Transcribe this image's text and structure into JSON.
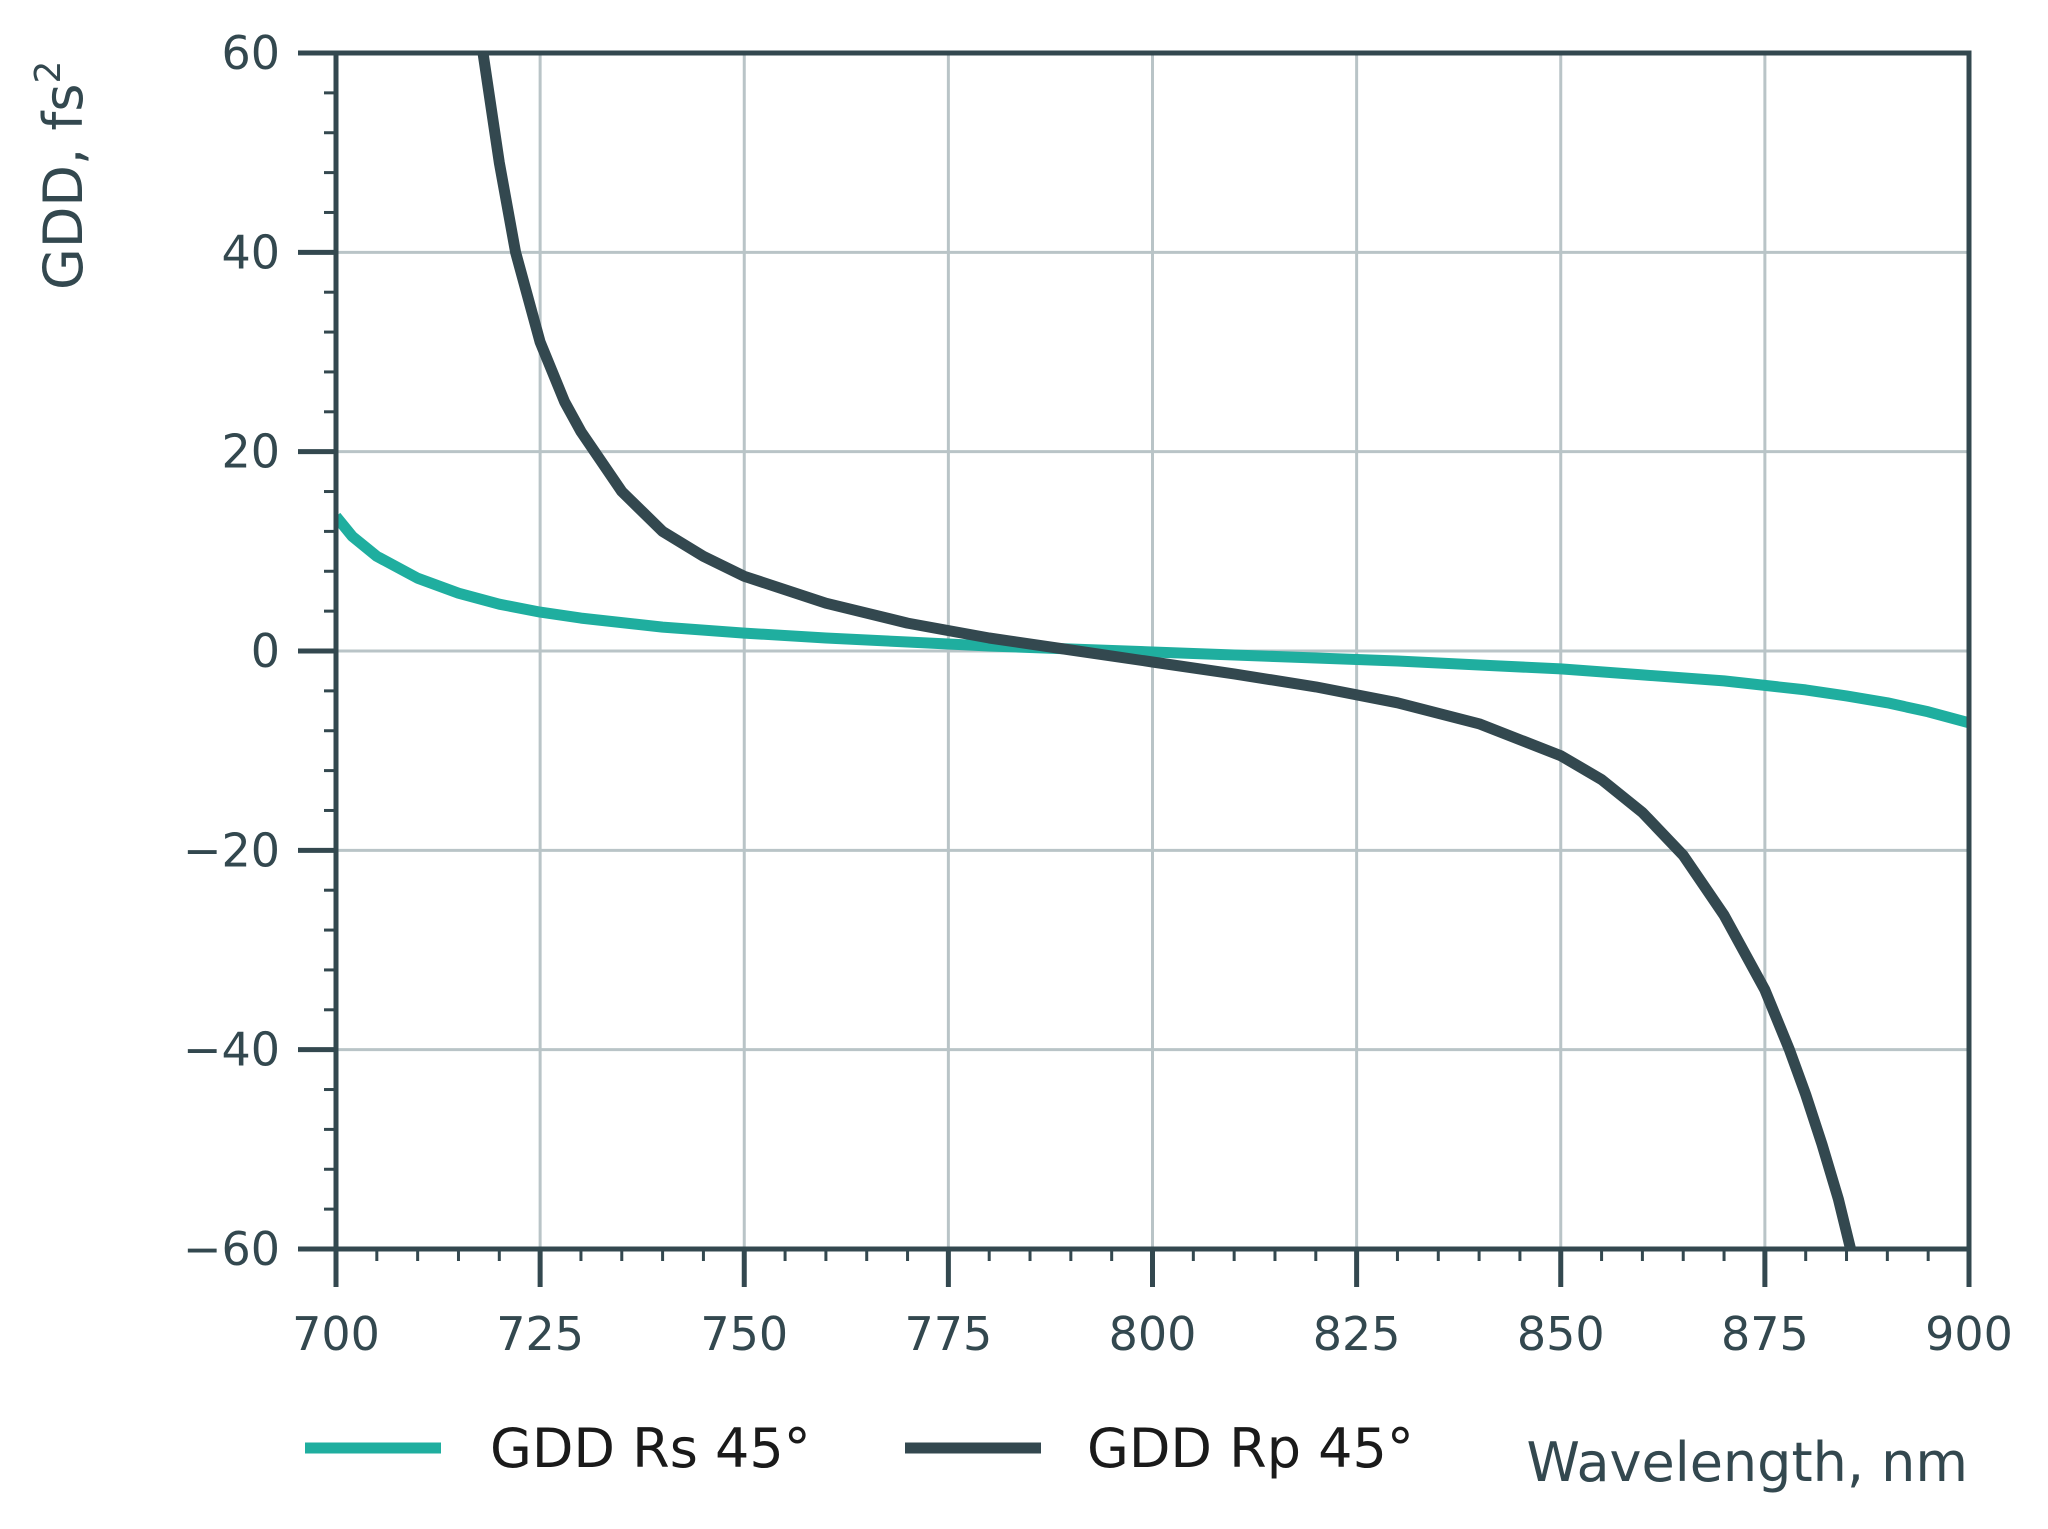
{
  "chart_data": {
    "type": "line",
    "xlabel": "Wavelength, nm",
    "ylabel": "GDD, fs",
    "ylabel_superscript": "2",
    "xlim": [
      700,
      900
    ],
    "ylim": [
      -60,
      60
    ],
    "x_ticks": [
      700,
      725,
      750,
      775,
      800,
      825,
      850,
      875,
      900
    ],
    "x_tick_labels": [
      "700",
      "725",
      "750",
      "775",
      "800",
      "825",
      "850",
      "875",
      "900"
    ],
    "y_ticks": [
      -60,
      -40,
      -20,
      0,
      20,
      40,
      60
    ],
    "y_tick_labels": [
      "−60",
      "−40",
      "−20",
      "0",
      "20",
      "40",
      "60"
    ],
    "grid": true,
    "legend_position": "bottom",
    "series": [
      {
        "name": "GDD Rs 45°",
        "color": "#1fae9f",
        "x": [
          700,
          702,
          705,
          710,
          715,
          720,
          725,
          730,
          740,
          750,
          760,
          770,
          780,
          790,
          800,
          810,
          820,
          830,
          840,
          850,
          860,
          870,
          880,
          885,
          890,
          895,
          900
        ],
        "y": [
          13.5,
          11.5,
          9.5,
          7.3,
          5.8,
          4.7,
          3.9,
          3.3,
          2.4,
          1.8,
          1.3,
          0.9,
          0.5,
          0.2,
          -0.1,
          -0.4,
          -0.7,
          -1.0,
          -1.4,
          -1.8,
          -2.4,
          -3.0,
          -3.9,
          -4.5,
          -5.2,
          -6.1,
          -7.2
        ]
      },
      {
        "name": "GDD Rp 45°",
        "color": "#33484f",
        "x": [
          718,
          720,
          722,
          725,
          728,
          730,
          735,
          740,
          745,
          750,
          760,
          770,
          780,
          790,
          800,
          810,
          820,
          830,
          840,
          850,
          855,
          860,
          865,
          870,
          875,
          878,
          880,
          882,
          884,
          885.5
        ],
        "y": [
          60,
          49,
          40,
          31,
          25,
          22,
          16,
          12,
          9.5,
          7.5,
          4.8,
          2.8,
          1.3,
          0.1,
          -1.1,
          -2.3,
          -3.6,
          -5.2,
          -7.3,
          -10.5,
          -12.9,
          -16.2,
          -20.5,
          -26.5,
          -34,
          -40,
          -44.5,
          -49.5,
          -55,
          -60
        ]
      }
    ]
  }
}
